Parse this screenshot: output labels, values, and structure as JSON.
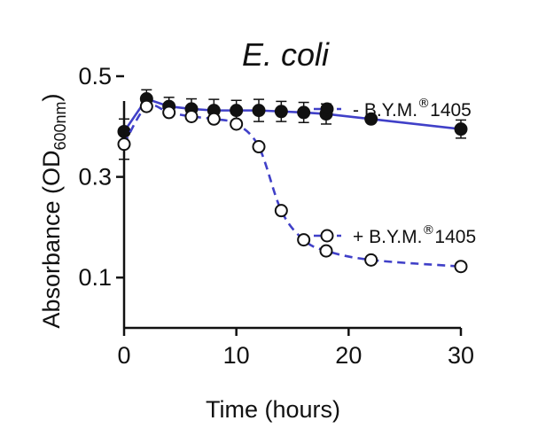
{
  "chart_data": {
    "type": "line",
    "title": "E. coli",
    "xlabel": "Time (hours)",
    "ylabel_main": "Absorbance (OD",
    "ylabel_sub": "600nm",
    "ylabel_close": ")",
    "xlim": [
      0,
      30
    ],
    "ylim": [
      0,
      0.5
    ],
    "xticks": [
      0,
      10,
      20,
      30
    ],
    "yticks": [
      0.1,
      0.3,
      0.5
    ],
    "grid": false,
    "legend_placement": "right, beside each curve",
    "color": "#4040c8",
    "series": [
      {
        "name_prefix": "- B.Y.M.",
        "name_sup": "®",
        "name_suffix": "1405",
        "marker": "filled",
        "line_style": "solid",
        "points": [
          {
            "x": 0,
            "y": 0.39,
            "err": 0.025
          },
          {
            "x": 2,
            "y": 0.455,
            "err": 0.018
          },
          {
            "x": 4,
            "y": 0.44,
            "err": 0.018
          },
          {
            "x": 6,
            "y": 0.435,
            "err": 0.02
          },
          {
            "x": 8,
            "y": 0.432,
            "err": 0.022
          },
          {
            "x": 10,
            "y": 0.432,
            "err": 0.02
          },
          {
            "x": 12,
            "y": 0.432,
            "err": 0.022
          },
          {
            "x": 14,
            "y": 0.43,
            "err": 0.02
          },
          {
            "x": 16,
            "y": 0.428,
            "err": 0.02
          },
          {
            "x": 18,
            "y": 0.425,
            "err": 0.02
          },
          {
            "x": 22,
            "y": 0.415,
            "err": 0
          },
          {
            "x": 30,
            "y": 0.395,
            "err": 0.018
          }
        ]
      },
      {
        "name_prefix": "+ B.Y.M.",
        "name_sup": "®",
        "name_suffix": "1405",
        "marker": "open",
        "line_style": "dashed",
        "points": [
          {
            "x": 0,
            "y": 0.365,
            "err": 0.03
          },
          {
            "x": 2,
            "y": 0.44,
            "err": 0
          },
          {
            "x": 4,
            "y": 0.428,
            "err": 0
          },
          {
            "x": 6,
            "y": 0.42,
            "err": 0
          },
          {
            "x": 8,
            "y": 0.415,
            "err": 0
          },
          {
            "x": 10,
            "y": 0.405,
            "err": 0
          },
          {
            "x": 12,
            "y": 0.36,
            "err": 0
          },
          {
            "x": 14,
            "y": 0.233,
            "err": 0
          },
          {
            "x": 16,
            "y": 0.175,
            "err": 0
          },
          {
            "x": 18,
            "y": 0.153,
            "err": 0
          },
          {
            "x": 22,
            "y": 0.135,
            "err": 0
          },
          {
            "x": 30,
            "y": 0.122,
            "err": 0
          }
        ]
      }
    ]
  }
}
